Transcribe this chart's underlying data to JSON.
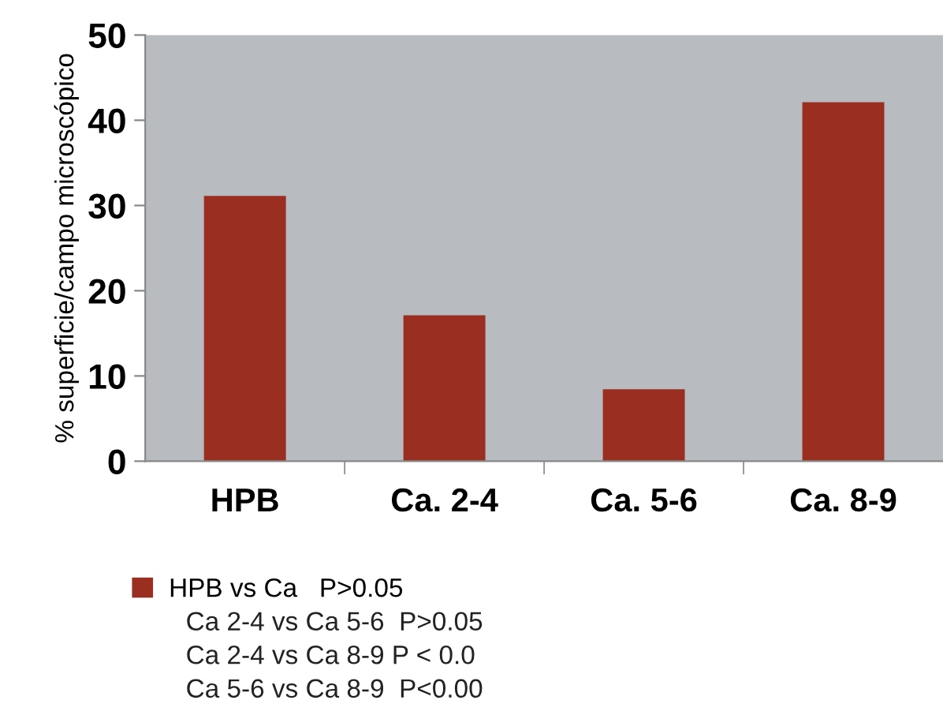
{
  "chart_data": {
    "type": "bar",
    "ylabel": "% superficie/campo microscópico",
    "categories": [
      "HPB",
      "Ca. 2-4",
      "Ca. 5-6",
      "Ca. 8-9"
    ],
    "series": [
      {
        "name": "HPB vs Ca   P>0.05",
        "color": "#9a2e20",
        "values": [
          31,
          17,
          8.3,
          42
        ]
      }
    ],
    "ylim": [
      0,
      50
    ],
    "yticks": [
      0,
      10,
      20,
      30,
      40,
      50
    ],
    "grid": false,
    "legend": "bottom",
    "annotations": [
      "Ca 2-4 vs Ca 5-6  P>0.05",
      "Ca 2-4 vs Ca 8-9 P < 0.0",
      "Ca 5-6 vs Ca 8-9  P<0.00"
    ]
  }
}
